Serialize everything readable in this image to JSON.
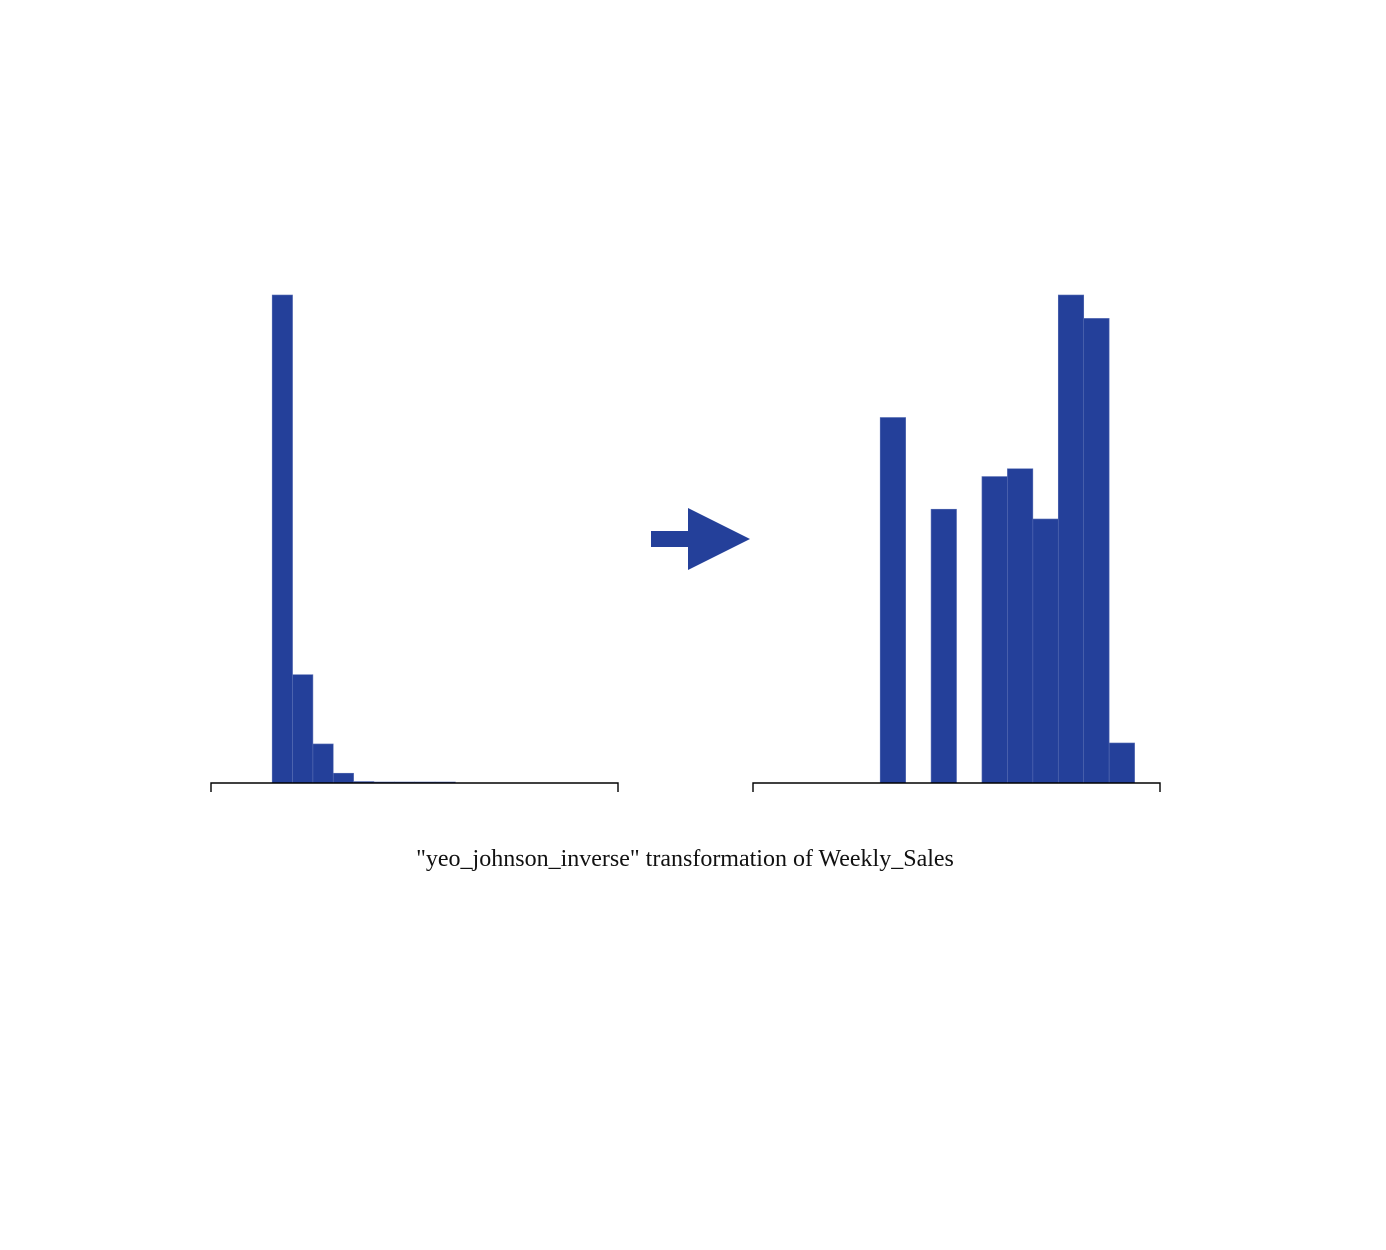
{
  "colors": {
    "bar": "#24409A",
    "axis": "#000000"
  },
  "caption": "\"yeo_johnson_inverse\" transformation of Weekly_Sales",
  "chart_data": [
    {
      "type": "bar",
      "panel": "original",
      "title": "",
      "xlabel": "",
      "ylabel": "",
      "grid": false,
      "ylim": [
        0,
        1
      ],
      "values": [
        0,
        0,
        1.0,
        0.222,
        0.08,
        0.02,
        0.003,
        0.001,
        0.0006,
        0.0004,
        0.0002,
        0,
        0,
        0,
        0,
        0,
        0,
        0,
        0,
        0
      ]
    },
    {
      "type": "bar",
      "panel": "transformed",
      "title": "",
      "xlabel": "",
      "ylabel": "",
      "grid": false,
      "ylim": [
        0,
        1
      ],
      "values": [
        0,
        0,
        0,
        0,
        0,
        0.749,
        0,
        0.561,
        0,
        0.628,
        0.644,
        0.541,
        1.0,
        0.952,
        0.082,
        0
      ]
    }
  ],
  "arrow": {
    "icon": "right-arrow-icon"
  }
}
